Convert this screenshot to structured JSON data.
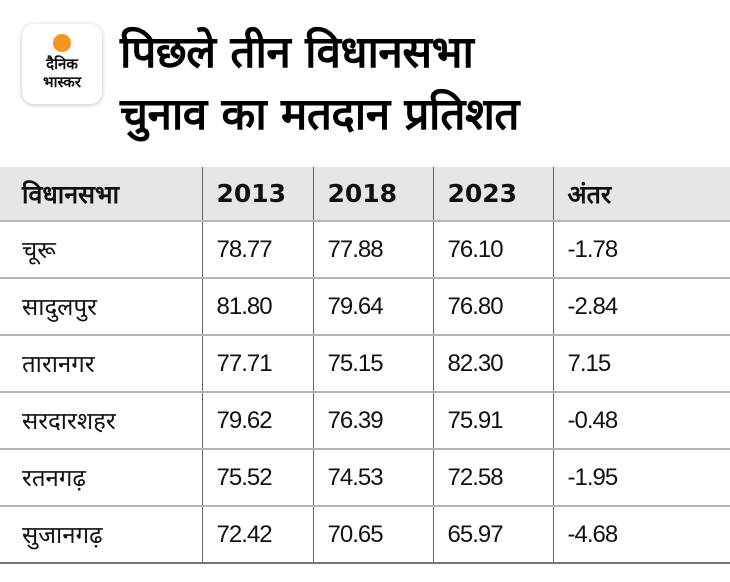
{
  "logo": {
    "line1": "दैनिक",
    "line2": "भास्कर",
    "accent": "#f7941d"
  },
  "title": {
    "line1": "पिछले तीन विधानसभा",
    "line2": "चुनाव का मतदान प्रतिशत"
  },
  "table": {
    "headers": [
      "विधानसभा",
      "2013",
      "2018",
      "2023",
      "अंतर"
    ],
    "rows": [
      [
        "चूरू",
        "78.77",
        "77.88",
        "76.10",
        "-1.78"
      ],
      [
        "सादुलपुर",
        "81.80",
        "79.64",
        "76.80",
        "-2.84"
      ],
      [
        "तारानगर",
        "77.71",
        "75.15",
        "82.30",
        "7.15"
      ],
      [
        "सरदारशहर",
        "79.62",
        "76.39",
        "75.91",
        "-0.48"
      ],
      [
        "रतनगढ़",
        "75.52",
        "74.53",
        "72.58",
        "-1.95"
      ],
      [
        "सुजानगढ़",
        "72.42",
        "70.65",
        "65.97",
        "-4.68"
      ]
    ]
  }
}
